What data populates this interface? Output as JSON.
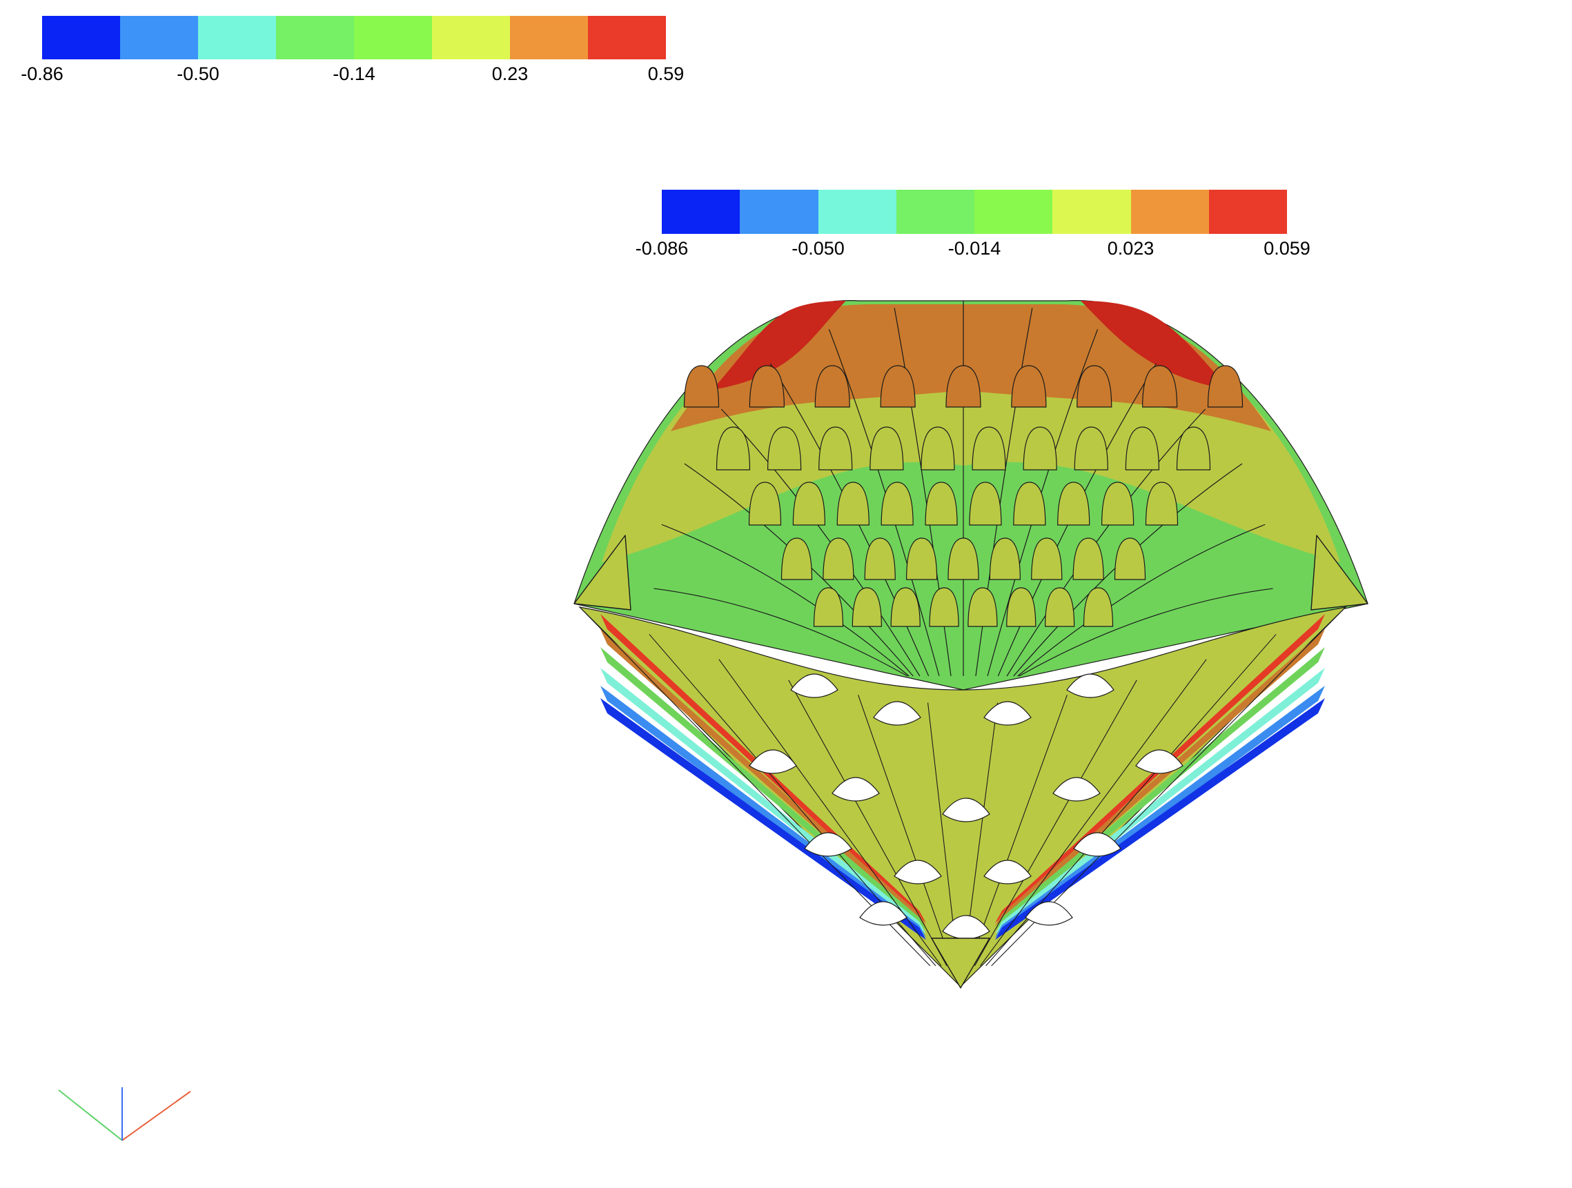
{
  "colormap": {
    "bins": [
      "#0a24f5",
      "#3d93f8",
      "#76f7dc",
      "#76f064",
      "#89f94d",
      "#dcf850",
      "#f0963a",
      "#e93a2a"
    ]
  },
  "colorbar_primary": {
    "ticks": [
      "-0.86",
      "-0.50",
      "-0.14",
      "0.23",
      "0.59"
    ],
    "range": [
      -0.86,
      0.59
    ]
  },
  "colorbar_secondary": {
    "ticks": [
      "-0.086",
      "-0.050",
      "-0.014",
      "0.023",
      "0.059"
    ],
    "range": [
      -0.086,
      0.059
    ]
  },
  "surface": {
    "panel_colors": {
      "outline": "#1a1a1a",
      "deep_red": "#c9261c",
      "orange": "#c97a2e",
      "olive": "#b9c944",
      "green": "#6fd35a",
      "cyan": "#7ef0d8",
      "blue": "#3a8cf0",
      "dark_blue": "#1232e6",
      "red": "#e53a26"
    }
  },
  "axes": {
    "colors": {
      "x": "#e8613a",
      "y": "#5fd26a",
      "z": "#3a6cf0"
    }
  }
}
